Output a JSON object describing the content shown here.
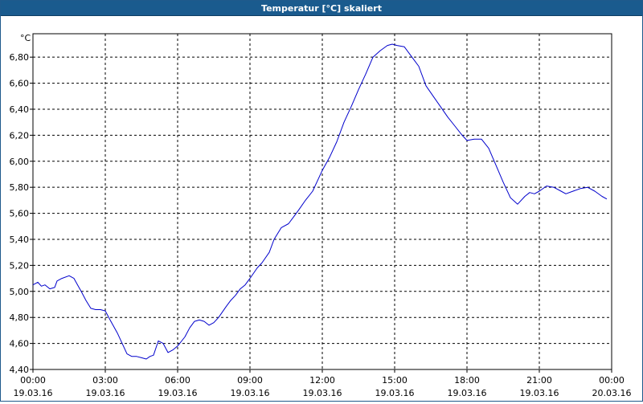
{
  "window": {
    "title": "Temperatur [°C] skaliert"
  },
  "chart_data": {
    "type": "line",
    "title": "Temperatur [°C] skaliert",
    "unit_label": "°C",
    "ylim": [
      4.4,
      6.98
    ],
    "y_ticks": [
      4.4,
      4.6,
      4.8,
      5.0,
      5.2,
      5.4,
      5.6,
      5.8,
      6.0,
      6.2,
      6.4,
      6.6,
      6.8
    ],
    "y_tick_labels": [
      "4,40",
      "4,60",
      "4,80",
      "5,00",
      "5,20",
      "5,40",
      "5,60",
      "5,80",
      "6,00",
      "6,20",
      "6,40",
      "6,60",
      "6,80"
    ],
    "xlim": [
      0,
      24
    ],
    "x_ticks": [
      0,
      3,
      6,
      9,
      12,
      15,
      18,
      21,
      24
    ],
    "x_tick_labels": [
      {
        "time": "00:00",
        "date": "19.03.16"
      },
      {
        "time": "03:00",
        "date": "19.03.16"
      },
      {
        "time": "06:00",
        "date": "19.03.16"
      },
      {
        "time": "09:00",
        "date": "19.03.16"
      },
      {
        "time": "12:00",
        "date": "19.03.16"
      },
      {
        "time": "15:00",
        "date": "19.03.16"
      },
      {
        "time": "18:00",
        "date": "19.03.16"
      },
      {
        "time": "21:00",
        "date": "19.03.16"
      },
      {
        "time": "00:00",
        "date": "20.03.16"
      }
    ],
    "grid": true,
    "color": "#0000cc",
    "series": [
      {
        "x": [
          0,
          0.2,
          0.35,
          0.5,
          0.7,
          0.9,
          1.0,
          1.2,
          1.5,
          1.7,
          1.85,
          2.0,
          2.2,
          2.4,
          2.6,
          2.8,
          3.0,
          3.2,
          3.5,
          3.7,
          3.9,
          4.1,
          4.3,
          4.5,
          4.7,
          4.85,
          5.0,
          5.2,
          5.4,
          5.6,
          5.8,
          6.0,
          6.3,
          6.5,
          6.7,
          6.9,
          7.1,
          7.3,
          7.5,
          7.7,
          8.0,
          8.2,
          8.4,
          8.6,
          8.8,
          9.0,
          9.3,
          9.5,
          9.8,
          10.0,
          10.3,
          10.6,
          10.8,
          11.0,
          11.3,
          11.6,
          11.8,
          12.0,
          12.3,
          12.6,
          12.9,
          13.2,
          13.5,
          13.8,
          14.1,
          14.4,
          14.7,
          14.9,
          15.1,
          15.4,
          15.6,
          15.8,
          16.0,
          16.3,
          16.6,
          16.9,
          17.2,
          17.5,
          17.8,
          18.0,
          18.3,
          18.6,
          18.9,
          19.2,
          19.5,
          19.8,
          20.1,
          20.4,
          20.6,
          20.8,
          21.0,
          21.3,
          21.6,
          21.9,
          22.1,
          22.4,
          22.7,
          23.0,
          23.3,
          23.6,
          23.8
        ],
        "y": [
          5.05,
          5.07,
          5.04,
          5.05,
          5.02,
          5.03,
          5.08,
          5.1,
          5.12,
          5.1,
          5.05,
          5.0,
          4.93,
          4.87,
          4.86,
          4.86,
          4.85,
          4.78,
          4.68,
          4.6,
          4.52,
          4.5,
          4.5,
          4.49,
          4.48,
          4.5,
          4.51,
          4.62,
          4.6,
          4.53,
          4.55,
          4.58,
          4.65,
          4.72,
          4.77,
          4.78,
          4.77,
          4.74,
          4.76,
          4.8,
          4.88,
          4.93,
          4.97,
          5.02,
          5.05,
          5.1,
          5.18,
          5.22,
          5.3,
          5.4,
          5.49,
          5.52,
          5.57,
          5.62,
          5.7,
          5.77,
          5.85,
          5.93,
          6.03,
          6.15,
          6.3,
          6.42,
          6.55,
          6.67,
          6.8,
          6.85,
          6.89,
          6.9,
          6.89,
          6.88,
          6.83,
          6.78,
          6.73,
          6.58,
          6.5,
          6.42,
          6.34,
          6.27,
          6.2,
          6.16,
          6.17,
          6.17,
          6.1,
          5.97,
          5.84,
          5.72,
          5.67,
          5.73,
          5.76,
          5.75,
          5.77,
          5.81,
          5.8,
          5.77,
          5.75,
          5.77,
          5.79,
          5.8,
          5.77,
          5.73,
          5.71
        ]
      }
    ]
  }
}
